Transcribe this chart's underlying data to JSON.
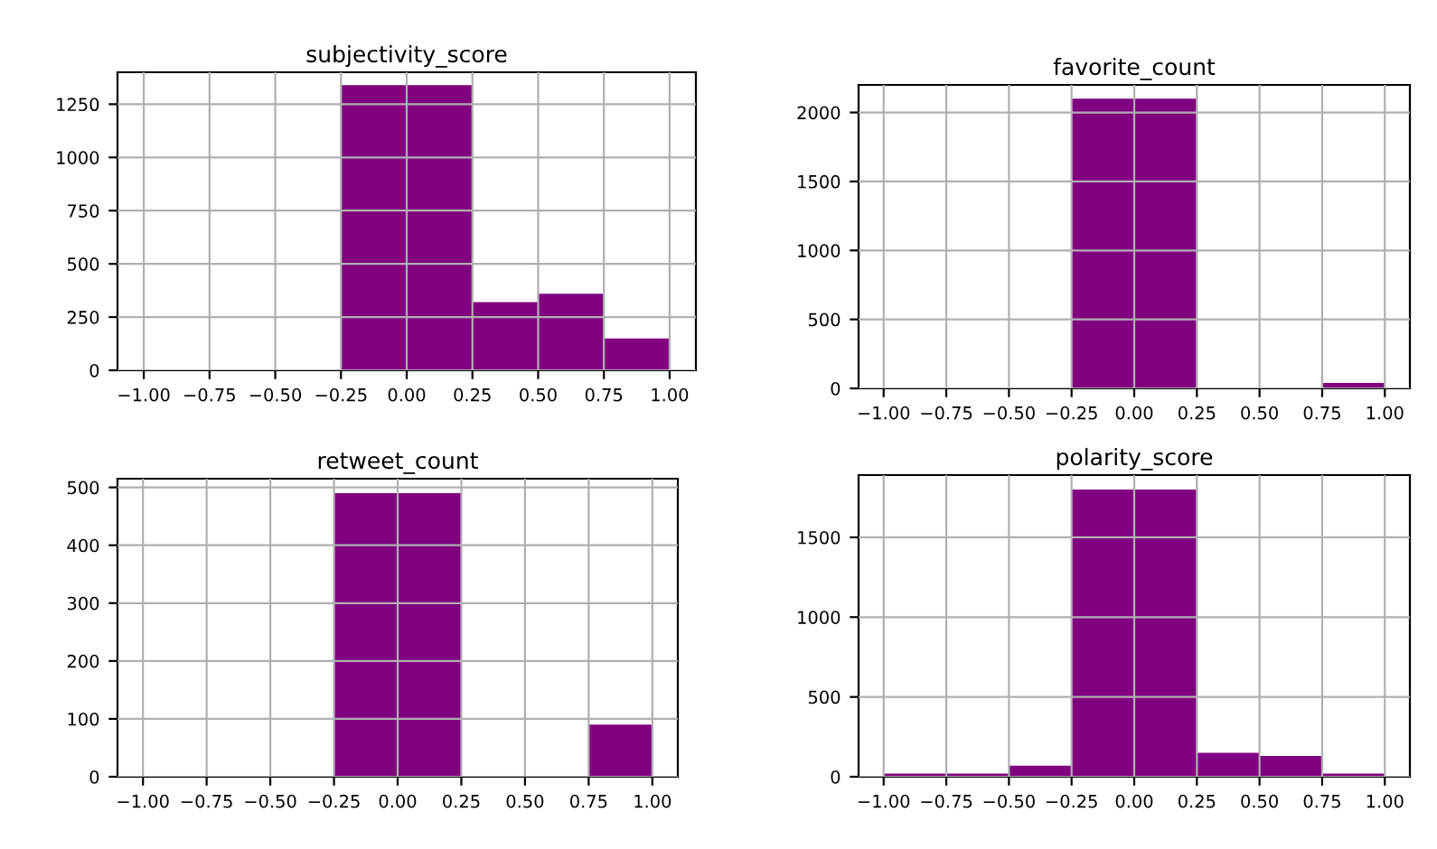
{
  "chart_data": [
    {
      "type": "histogram",
      "title": "subjectivity_score",
      "bins": [
        -0.25,
        0.25,
        0.5,
        0.75,
        1
      ],
      "values": [
        1340,
        320,
        360,
        150
      ],
      "color": "#800080",
      "xlim": [
        -1.1,
        1.1
      ],
      "xticks": [
        {
          "value": -1,
          "label": "−1.00"
        },
        {
          "value": -0.75,
          "label": "−0.75"
        },
        {
          "value": -0.5,
          "label": "−0.50"
        },
        {
          "value": -0.25,
          "label": "−0.25"
        },
        {
          "value": 0,
          "label": "0.00"
        },
        {
          "value": 0.25,
          "label": "0.25"
        },
        {
          "value": 0.5,
          "label": "0.50"
        },
        {
          "value": 0.75,
          "label": "0.75"
        },
        {
          "value": 1,
          "label": "1.00"
        }
      ],
      "ylim": [
        0,
        1400
      ],
      "yticks": [
        0,
        250,
        500,
        750,
        1000,
        1250
      ],
      "grid": true
    },
    {
      "type": "histogram",
      "title": "favorite_count",
      "bins": [
        -0.25,
        0.25,
        0.75,
        1
      ],
      "values": [
        2100,
        0,
        40
      ],
      "color": "#800080",
      "xlim": [
        -1.1,
        1.1
      ],
      "xticks": [
        {
          "value": -1,
          "label": "−1.00"
        },
        {
          "value": -0.75,
          "label": "−0.75"
        },
        {
          "value": -0.5,
          "label": "−0.50"
        },
        {
          "value": -0.25,
          "label": "−0.25"
        },
        {
          "value": 0,
          "label": "0.00"
        },
        {
          "value": 0.25,
          "label": "0.25"
        },
        {
          "value": 0.5,
          "label": "0.50"
        },
        {
          "value": 0.75,
          "label": "0.75"
        },
        {
          "value": 1,
          "label": "1.00"
        }
      ],
      "ylim": [
        0,
        2200
      ],
      "yticks": [
        0,
        500,
        1000,
        1500,
        2000
      ],
      "grid": true
    },
    {
      "type": "histogram",
      "title": "retweet_count",
      "bins": [
        -0.25,
        0.25,
        0.75,
        1
      ],
      "values": [
        490,
        0,
        90
      ],
      "color": "#800080",
      "xlim": [
        -1.1,
        1.1
      ],
      "xticks": [
        {
          "value": -1,
          "label": "−1.00"
        },
        {
          "value": -0.75,
          "label": "−0.75"
        },
        {
          "value": -0.5,
          "label": "−0.50"
        },
        {
          "value": -0.25,
          "label": "−0.25"
        },
        {
          "value": 0,
          "label": "0.00"
        },
        {
          "value": 0.25,
          "label": "0.25"
        },
        {
          "value": 0.5,
          "label": "0.50"
        },
        {
          "value": 0.75,
          "label": "0.75"
        },
        {
          "value": 1,
          "label": "1.00"
        }
      ],
      "ylim": [
        0,
        515
      ],
      "yticks": [
        0,
        100,
        200,
        300,
        400,
        500
      ],
      "grid": true
    },
    {
      "type": "histogram",
      "title": "polarity_score",
      "bins": [
        -1,
        -0.75,
        -0.5,
        -0.25,
        0.25,
        0.5,
        0.75,
        1
      ],
      "values": [
        20,
        20,
        70,
        1800,
        150,
        130,
        20
      ],
      "color": "#800080",
      "xlim": [
        -1.1,
        1.1
      ],
      "xticks": [
        {
          "value": -1,
          "label": "−1.00"
        },
        {
          "value": -0.75,
          "label": "−0.75"
        },
        {
          "value": -0.5,
          "label": "−0.50"
        },
        {
          "value": -0.25,
          "label": "−0.25"
        },
        {
          "value": 0,
          "label": "0.00"
        },
        {
          "value": 0.25,
          "label": "0.25"
        },
        {
          "value": 0.5,
          "label": "0.50"
        },
        {
          "value": 0.75,
          "label": "0.75"
        },
        {
          "value": 1,
          "label": "1.00"
        }
      ],
      "ylim": [
        0,
        1890
      ],
      "yticks": [
        0,
        500,
        1000,
        1500
      ],
      "grid": true
    }
  ]
}
